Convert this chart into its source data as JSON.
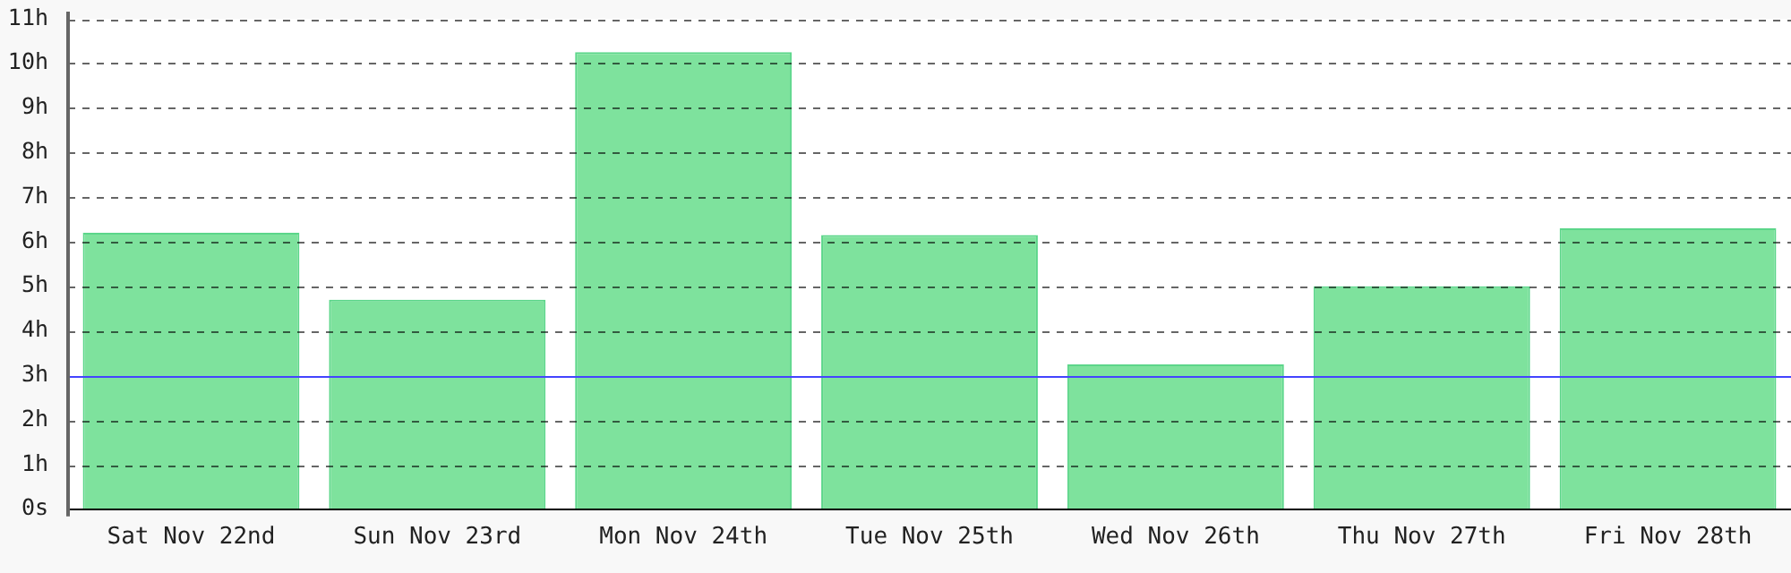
{
  "chart_data": {
    "type": "bar",
    "categories": [
      "Sat Nov 22nd",
      "Sun Nov 23rd",
      "Mon Nov 24th",
      "Tue Nov 25th",
      "Wed Nov 26th",
      "Thu Nov 27th",
      "Fri Nov 28th"
    ],
    "values": [
      6.2,
      4.7,
      10.25,
      6.15,
      3.25,
      5.0,
      6.3
    ],
    "color": "#7ee29d",
    "ylim": [
      0,
      11
    ],
    "yticks": [
      {
        "value": 0,
        "label": "0s"
      },
      {
        "value": 1,
        "label": "1h"
      },
      {
        "value": 2,
        "label": "2h"
      },
      {
        "value": 3,
        "label": "3h"
      },
      {
        "value": 4,
        "label": "4h"
      },
      {
        "value": 5,
        "label": "5h"
      },
      {
        "value": 6,
        "label": "6h"
      },
      {
        "value": 7,
        "label": "7h"
      },
      {
        "value": 8,
        "label": "8h"
      },
      {
        "value": 9,
        "label": "9h"
      },
      {
        "value": 10,
        "label": "10h"
      },
      {
        "value": 11,
        "label": "11h"
      }
    ],
    "grid": "y",
    "line_style": "dashed",
    "ref_lines": [
      {
        "axis": "y",
        "value": 3,
        "color": "#4444ff"
      }
    ]
  }
}
